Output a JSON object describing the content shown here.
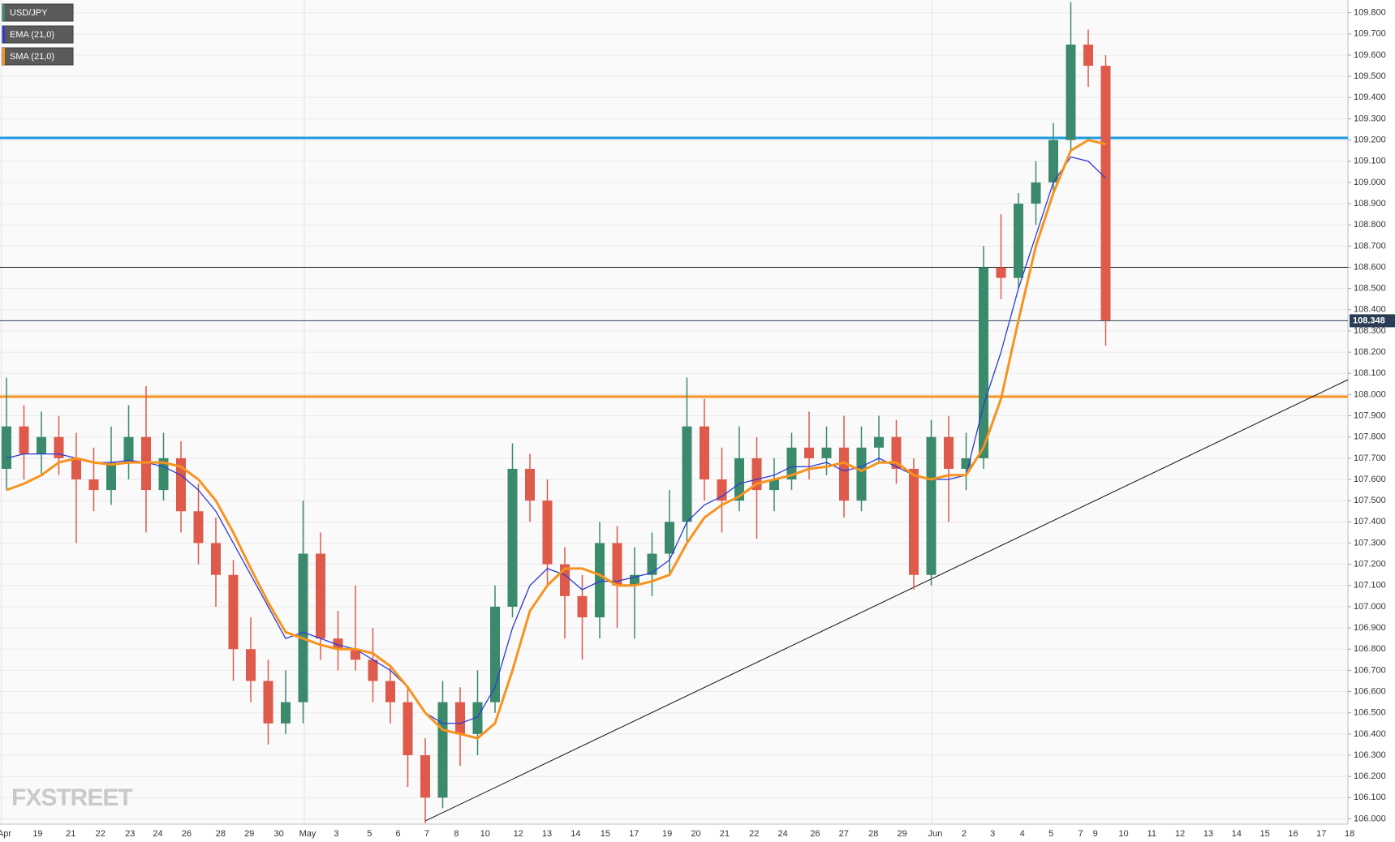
{
  "chart_data": {
    "type": "candlestick",
    "series": [
      {
        "name": "USD/JPY",
        "up_color": "#3b8a6c",
        "down_color": "#de5a4b",
        "open": [
          107.65,
          107.85,
          107.72,
          107.8,
          107.7,
          107.6,
          107.55,
          107.68,
          107.8,
          107.55,
          107.7,
          107.45,
          107.3,
          107.15,
          106.8,
          106.65,
          106.45,
          106.55,
          107.25,
          106.85,
          106.8,
          106.75,
          106.65,
          106.55,
          106.3,
          106.1,
          106.55,
          106.4,
          106.55,
          107.0,
          107.65,
          107.5,
          107.2,
          107.05,
          106.95,
          107.3,
          107.1,
          107.15,
          107.25,
          107.4,
          107.85,
          107.6,
          107.5,
          107.7,
          107.55,
          107.6,
          107.75,
          107.7,
          107.75,
          107.5,
          107.75,
          107.8,
          107.65,
          107.15,
          107.8,
          107.65,
          107.7,
          108.6,
          108.55,
          108.9,
          109.0,
          109.2,
          109.65,
          109.55
        ],
        "high": [
          108.08,
          107.95,
          107.92,
          107.9,
          107.82,
          107.75,
          107.85,
          107.95,
          108.04,
          107.82,
          107.78,
          107.58,
          107.42,
          107.22,
          106.95,
          106.75,
          106.7,
          107.5,
          107.35,
          106.98,
          107.1,
          106.9,
          106.72,
          106.62,
          106.38,
          106.65,
          106.62,
          106.7,
          107.1,
          107.77,
          107.72,
          107.6,
          107.28,
          107.15,
          107.4,
          107.38,
          107.28,
          107.35,
          107.55,
          108.08,
          107.98,
          107.75,
          107.85,
          107.8,
          107.7,
          107.82,
          107.92,
          107.85,
          107.9,
          107.85,
          107.9,
          107.88,
          107.7,
          107.88,
          107.9,
          107.82,
          108.7,
          108.85,
          108.95,
          109.1,
          109.28,
          109.85,
          109.72,
          109.6
        ],
        "low": [
          107.55,
          107.6,
          107.62,
          107.62,
          107.3,
          107.45,
          107.48,
          107.6,
          107.35,
          107.5,
          107.35,
          107.2,
          107.0,
          106.65,
          106.55,
          106.35,
          106.4,
          106.45,
          106.75,
          106.7,
          106.7,
          106.55,
          106.45,
          106.15,
          105.98,
          106.05,
          106.25,
          106.3,
          106.5,
          106.95,
          107.4,
          107.1,
          106.85,
          106.75,
          106.85,
          106.9,
          106.85,
          107.05,
          107.15,
          107.3,
          107.5,
          107.35,
          107.45,
          107.32,
          107.45,
          107.55,
          107.6,
          107.62,
          107.42,
          107.45,
          107.68,
          107.58,
          107.08,
          107.1,
          107.4,
          107.55,
          107.65,
          108.45,
          108.5,
          108.8,
          108.95,
          109.15,
          109.45,
          108.23
        ],
        "close": [
          107.85,
          107.72,
          107.8,
          107.7,
          107.6,
          107.55,
          107.68,
          107.8,
          107.55,
          107.7,
          107.45,
          107.3,
          107.15,
          106.8,
          106.65,
          106.45,
          106.55,
          107.25,
          106.85,
          106.8,
          106.75,
          106.65,
          106.55,
          106.3,
          106.1,
          106.55,
          106.4,
          106.55,
          107.0,
          107.65,
          107.5,
          107.2,
          107.05,
          106.95,
          107.3,
          107.1,
          107.15,
          107.25,
          107.4,
          107.85,
          107.6,
          107.5,
          107.7,
          107.55,
          107.6,
          107.75,
          107.7,
          107.75,
          107.5,
          107.75,
          107.8,
          107.65,
          107.15,
          107.8,
          107.65,
          107.7,
          108.6,
          108.55,
          108.9,
          109.0,
          109.2,
          109.65,
          109.55,
          108.35
        ]
      },
      {
        "name": "EMA (21,0)",
        "color": "#2a3bd6",
        "values": [
          107.7,
          107.72,
          107.72,
          107.72,
          107.7,
          107.68,
          107.68,
          107.69,
          107.68,
          107.66,
          107.62,
          107.55,
          107.45,
          107.3,
          107.15,
          107.0,
          106.85,
          106.88,
          106.85,
          106.82,
          106.8,
          106.75,
          106.7,
          106.62,
          106.5,
          106.45,
          106.45,
          106.48,
          106.62,
          106.9,
          107.1,
          107.18,
          107.15,
          107.08,
          107.12,
          107.12,
          107.14,
          107.16,
          107.22,
          107.4,
          107.48,
          107.52,
          107.58,
          107.6,
          107.62,
          107.66,
          107.66,
          107.68,
          107.64,
          107.66,
          107.7,
          107.66,
          107.62,
          107.6,
          107.6,
          107.62,
          107.95,
          108.2,
          108.5,
          108.75,
          109.0,
          109.12,
          109.1,
          109.02
        ]
      },
      {
        "name": "SMA (21,0)",
        "color": "#f7931e",
        "values": [
          107.55,
          107.58,
          107.62,
          107.68,
          107.7,
          107.68,
          107.67,
          107.68,
          107.68,
          107.68,
          107.66,
          107.6,
          107.5,
          107.35,
          107.18,
          107.02,
          106.88,
          106.85,
          106.82,
          106.8,
          106.8,
          106.78,
          106.72,
          106.62,
          106.5,
          106.42,
          106.4,
          106.38,
          106.45,
          106.7,
          106.98,
          107.1,
          107.18,
          107.18,
          107.15,
          107.1,
          107.1,
          107.12,
          107.15,
          107.3,
          107.42,
          107.48,
          107.52,
          107.58,
          107.6,
          107.62,
          107.65,
          107.66,
          107.68,
          107.64,
          107.68,
          107.68,
          107.62,
          107.6,
          107.62,
          107.62,
          107.75,
          107.98,
          108.35,
          108.7,
          108.95,
          109.15,
          109.2,
          109.18
        ]
      }
    ],
    "x_labels": [
      "Apr",
      "19",
      "21",
      "22",
      "23",
      "24",
      "26",
      "28",
      "29",
      "30",
      "May",
      "3",
      "5",
      "6",
      "7",
      "8",
      "10",
      "12",
      "13",
      "14",
      "15",
      "17",
      "19",
      "20",
      "21",
      "22",
      "24",
      "26",
      "27",
      "28",
      "29",
      "Jun",
      "2",
      "3",
      "4",
      "5",
      "7",
      "9",
      "10",
      "11",
      "12",
      "13",
      "14",
      "15",
      "16",
      "17",
      "18"
    ],
    "ylim": [
      105.975,
      109.86
    ],
    "yticks": [
      {
        "value": 106.0,
        "label": "106.000"
      },
      {
        "value": 106.1,
        "label": "106.100"
      },
      {
        "value": 106.2,
        "label": "106.200"
      },
      {
        "value": 106.3,
        "label": "106.300"
      },
      {
        "value": 106.4,
        "label": "106.400"
      },
      {
        "value": 106.5,
        "label": "106.500"
      },
      {
        "value": 106.6,
        "label": "106.600"
      },
      {
        "value": 106.7,
        "label": "106.700"
      },
      {
        "value": 106.8,
        "label": "106.800"
      },
      {
        "value": 106.9,
        "label": "106.900"
      },
      {
        "value": 107.0,
        "label": "107.000"
      },
      {
        "value": 107.1,
        "label": "107.100"
      },
      {
        "value": 107.2,
        "label": "107.200"
      },
      {
        "value": 107.3,
        "label": "107.300"
      },
      {
        "value": 107.4,
        "label": "107.400"
      },
      {
        "value": 107.5,
        "label": "107.500"
      },
      {
        "value": 107.6,
        "label": "107.600"
      },
      {
        "value": 107.7,
        "label": "107.700"
      },
      {
        "value": 107.8,
        "label": "107.800"
      },
      {
        "value": 107.9,
        "label": "107.900"
      },
      {
        "value": 108.0,
        "label": "108.000"
      },
      {
        "value": 108.1,
        "label": "108.100"
      },
      {
        "value": 108.2,
        "label": "108.200"
      },
      {
        "value": 108.3,
        "label": "108.300"
      },
      {
        "value": 108.4,
        "label": "108.400"
      },
      {
        "value": 108.5,
        "label": "108.500"
      },
      {
        "value": 108.6,
        "label": "108.600"
      },
      {
        "value": 108.7,
        "label": "108.700"
      },
      {
        "value": 108.8,
        "label": "108.800"
      },
      {
        "value": 108.9,
        "label": "108.900"
      },
      {
        "value": 109.0,
        "label": "109.000"
      },
      {
        "value": 109.1,
        "label": "109.100"
      },
      {
        "value": 109.2,
        "label": "109.200"
      },
      {
        "value": 109.3,
        "label": "109.300"
      },
      {
        "value": 109.4,
        "label": "109.400"
      },
      {
        "value": 109.5,
        "label": "109.500"
      },
      {
        "value": 109.6,
        "label": "109.600"
      },
      {
        "value": 109.7,
        "label": "109.700"
      },
      {
        "value": 109.8,
        "label": "109.800"
      }
    ],
    "grid": true,
    "levels": [
      {
        "value": 109.21,
        "color": "#1e9be0"
      },
      {
        "value": 108.6,
        "color": "#111111"
      },
      {
        "value": 107.99,
        "color": "#f7931e"
      }
    ],
    "trendline": {
      "start": 105.99,
      "end": 108.07,
      "color": "#111111"
    },
    "current_price": 108.348,
    "watermark": "FXSTREET"
  }
}
